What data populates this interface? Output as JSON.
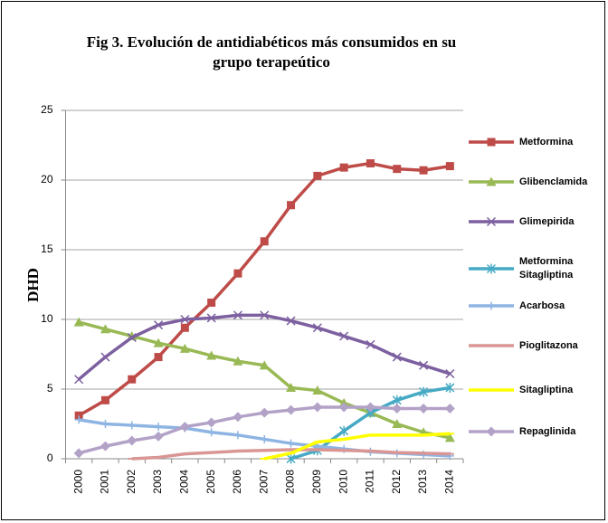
{
  "chart_data": {
    "type": "line",
    "title": "Fig 3. Evolución de antidiabéticos más consumidos en su grupo terapeútico",
    "y_label": "DHD",
    "categories": [
      "2000",
      "2001",
      "2002",
      "2003",
      "2004",
      "2005",
      "2006",
      "2007",
      "2008",
      "2009",
      "2010",
      "2011",
      "2012",
      "2013",
      "2014"
    ],
    "ylim": [
      0,
      25
    ],
    "yticks": [
      0,
      5,
      10,
      15,
      20,
      25
    ],
    "grid": true,
    "legend": "right",
    "series": [
      {
        "name": "Metformina",
        "color": "#be4b48",
        "marker": "square",
        "values": [
          3.1,
          4.2,
          5.7,
          7.3,
          9.4,
          11.2,
          13.3,
          15.6,
          18.2,
          20.3,
          20.9,
          21.2,
          20.8,
          20.7,
          21.0
        ]
      },
      {
        "name": "Glibenclamida",
        "color": "#98b954",
        "marker": "triangle",
        "values": [
          9.8,
          9.3,
          8.8,
          8.3,
          7.9,
          7.4,
          7.0,
          6.7,
          5.1,
          4.9,
          4.0,
          3.3,
          2.5,
          1.9,
          1.5
        ]
      },
      {
        "name": "Glimepirida",
        "color": "#7d60a0",
        "marker": "x",
        "values": [
          5.7,
          7.3,
          8.7,
          9.6,
          10.0,
          10.1,
          10.3,
          10.3,
          9.9,
          9.4,
          8.8,
          8.2,
          7.3,
          6.7,
          6.1
        ]
      },
      {
        "name": "Metformina Sitagliptina",
        "color": "#46aac5",
        "marker": "star",
        "values": [
          null,
          null,
          null,
          null,
          null,
          null,
          null,
          null,
          0,
          0.6,
          2.0,
          3.3,
          4.2,
          4.8,
          5.1
        ]
      },
      {
        "name": "Acarbosa",
        "color": "#8eb4e3",
        "marker": "plus",
        "values": [
          2.8,
          2.5,
          2.4,
          2.3,
          2.2,
          1.9,
          1.7,
          1.4,
          1.1,
          0.9,
          0.7,
          0.5,
          0.4,
          0.3,
          0.2
        ]
      },
      {
        "name": "Pioglitazona",
        "color": "#d99694",
        "marker": "dash",
        "values": [
          null,
          null,
          0,
          0.1,
          0.35,
          0.45,
          0.55,
          0.6,
          0.65,
          0.65,
          0.6,
          0.55,
          0.45,
          0.4,
          0.35
        ]
      },
      {
        "name": "Sitagliptina",
        "color": "#ffff00",
        "marker": "dash",
        "values": [
          null,
          null,
          null,
          null,
          null,
          null,
          null,
          0,
          0.4,
          1.2,
          1.4,
          1.7,
          1.7,
          1.7,
          1.8
        ]
      },
      {
        "name": "Repaglinida",
        "color": "#b3a2c7",
        "marker": "diamond",
        "values": [
          0.4,
          0.9,
          1.3,
          1.6,
          2.3,
          2.6,
          3.0,
          3.3,
          3.5,
          3.7,
          3.7,
          3.7,
          3.6,
          3.6,
          3.6
        ]
      }
    ]
  }
}
